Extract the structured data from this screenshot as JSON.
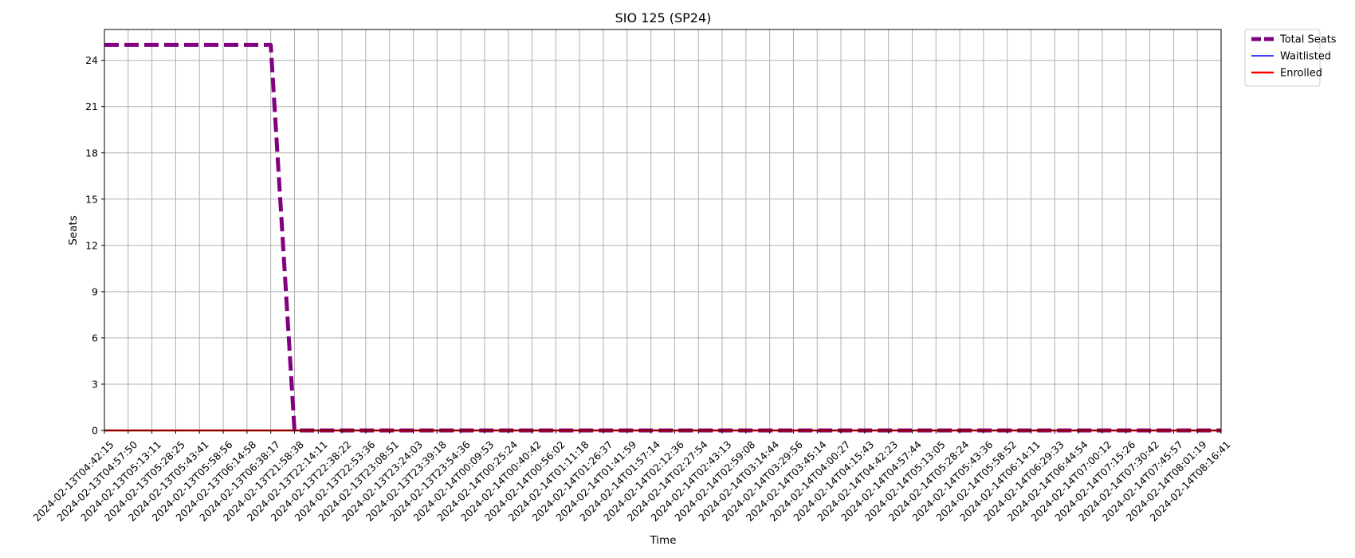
{
  "chart_data": {
    "type": "line",
    "title": "SIO 125 (SP24)",
    "xlabel": "Time",
    "ylabel": "Seats",
    "ylim": [
      0,
      26
    ],
    "yticks": [
      0,
      3,
      6,
      9,
      12,
      15,
      18,
      21,
      24
    ],
    "grid": true,
    "legend_position": "outside-top-right",
    "x": [
      "2024-02-13T04:42:15",
      "2024-02-13T04:57:50",
      "2024-02-13T05:13:11",
      "2024-02-13T05:28:25",
      "2024-02-13T05:43:41",
      "2024-02-13T05:58:56",
      "2024-02-13T06:14:58",
      "2024-02-13T06:38:17",
      "2024-02-13T21:58:38",
      "2024-02-13T22:14:11",
      "2024-02-13T22:38:22",
      "2024-02-13T22:53:36",
      "2024-02-13T23:08:51",
      "2024-02-13T23:24:03",
      "2024-02-13T23:39:18",
      "2024-02-13T23:54:36",
      "2024-02-14T00:09:53",
      "2024-02-14T00:25:24",
      "2024-02-14T00:40:42",
      "2024-02-14T00:56:02",
      "2024-02-14T01:11:18",
      "2024-02-14T01:26:37",
      "2024-02-14T01:41:59",
      "2024-02-14T01:57:14",
      "2024-02-14T02:12:36",
      "2024-02-14T02:27:54",
      "2024-02-14T02:43:13",
      "2024-02-14T02:59:08",
      "2024-02-14T03:14:44",
      "2024-02-14T03:29:56",
      "2024-02-14T03:45:14",
      "2024-02-14T04:00:27",
      "2024-02-14T04:15:43",
      "2024-02-14T04:42:23",
      "2024-02-14T04:57:44",
      "2024-02-14T05:13:05",
      "2024-02-14T05:28:24",
      "2024-02-14T05:43:36",
      "2024-02-14T05:58:52",
      "2024-02-14T06:14:11",
      "2024-02-14T06:29:33",
      "2024-02-14T06:44:54",
      "2024-02-14T07:00:12",
      "2024-02-14T07:15:26",
      "2024-02-14T07:30:42",
      "2024-02-14T07:45:57",
      "2024-02-14T08:01:19",
      "2024-02-14T08:16:41"
    ],
    "series": [
      {
        "name": "Total Seats",
        "color": "#800080",
        "style": "dashed",
        "values": [
          25,
          25,
          25,
          25,
          25,
          25,
          25,
          25,
          0,
          0,
          0,
          0,
          0,
          0,
          0,
          0,
          0,
          0,
          0,
          0,
          0,
          0,
          0,
          0,
          0,
          0,
          0,
          0,
          0,
          0,
          0,
          0,
          0,
          0,
          0,
          0,
          0,
          0,
          0,
          0,
          0,
          0,
          0,
          0,
          0,
          0,
          0,
          0
        ]
      },
      {
        "name": "Waitlisted",
        "color": "#0000ff",
        "style": "solid",
        "values": [
          0,
          0,
          0,
          0,
          0,
          0,
          0,
          0,
          0,
          0,
          0,
          0,
          0,
          0,
          0,
          0,
          0,
          0,
          0,
          0,
          0,
          0,
          0,
          0,
          0,
          0,
          0,
          0,
          0,
          0,
          0,
          0,
          0,
          0,
          0,
          0,
          0,
          0,
          0,
          0,
          0,
          0,
          0,
          0,
          0,
          0,
          0,
          0
        ]
      },
      {
        "name": "Enrolled",
        "color": "#ff0000",
        "style": "solid",
        "values": [
          0,
          0,
          0,
          0,
          0,
          0,
          0,
          0,
          0,
          0,
          0,
          0,
          0,
          0,
          0,
          0,
          0,
          0,
          0,
          0,
          0,
          0,
          0,
          0,
          0,
          0,
          0,
          0,
          0,
          0,
          0,
          0,
          0,
          0,
          0,
          0,
          0,
          0,
          0,
          0,
          0,
          0,
          0,
          0,
          0,
          0,
          0,
          0
        ]
      }
    ]
  }
}
